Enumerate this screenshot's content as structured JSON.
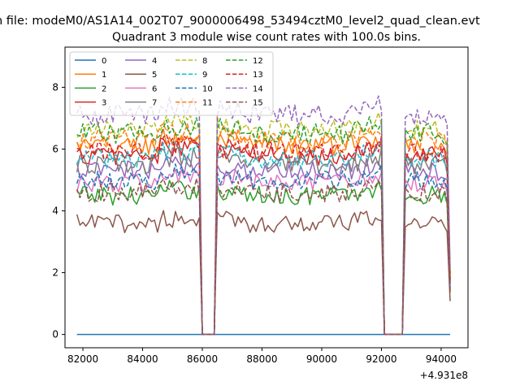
{
  "figure": {
    "suptitle": "n file: modeM0/AS1A14_002T07_9000006498_53494cztM0_level2_quad_clean.evt"
  },
  "chart_data": {
    "type": "line",
    "title": "Quadrant 3 module wise count rates with 100.0s bins.",
    "xlabel": "",
    "ylabel": "",
    "x_offset_label": "+4.931e8",
    "xlim": [
      81400,
      94900
    ],
    "ylim": [
      -0.43,
      9.3
    ],
    "x_ticks": [
      82000,
      84000,
      86000,
      88000,
      90000,
      92000,
      94000
    ],
    "y_ticks": [
      0,
      2,
      4,
      6,
      8
    ],
    "grid": false,
    "legend": {
      "position": "top-left",
      "columns": 4
    },
    "x_range": [
      81800,
      94300
    ],
    "x_step": 100,
    "gaps": [
      [
        86000,
        86400
      ],
      [
        92100,
        92700
      ]
    ],
    "series": [
      {
        "name": "0",
        "color": "#1f77b4",
        "dash": "solid",
        "base": 0.0
      },
      {
        "name": "1",
        "color": "#ff7f0e",
        "dash": "solid",
        "base": 6.1
      },
      {
        "name": "2",
        "color": "#2ca02c",
        "dash": "solid",
        "base": 4.5
      },
      {
        "name": "3",
        "color": "#d62728",
        "dash": "solid",
        "base": 5.8
      },
      {
        "name": "4",
        "color": "#9467bd",
        "dash": "solid",
        "base": 5.3
      },
      {
        "name": "5",
        "color": "#8c564b",
        "dash": "solid",
        "base": 3.6
      },
      {
        "name": "6",
        "color": "#e377c2",
        "dash": "solid",
        "base": 4.9
      },
      {
        "name": "7",
        "color": "#7f7f7f",
        "dash": "solid",
        "base": 5.5
      },
      {
        "name": "8",
        "color": "#bcbd22",
        "dash": "dashed",
        "base": 6.6
      },
      {
        "name": "9",
        "color": "#17becf",
        "dash": "dashed",
        "base": 5.7
      },
      {
        "name": "10",
        "color": "#1f77b4",
        "dash": "dashed",
        "base": 5.0
      },
      {
        "name": "11",
        "color": "#ff7f0e",
        "dash": "dashed",
        "base": 6.3
      },
      {
        "name": "12",
        "color": "#2ca02c",
        "dash": "dashed",
        "base": 6.5
      },
      {
        "name": "13",
        "color": "#d62728",
        "dash": "dashed",
        "base": 5.9
      },
      {
        "name": "14",
        "color": "#9467bd",
        "dash": "dashed",
        "base": 7.1
      },
      {
        "name": "15",
        "color": "#8c564b",
        "dash": "dashed",
        "base": 4.6
      }
    ]
  }
}
